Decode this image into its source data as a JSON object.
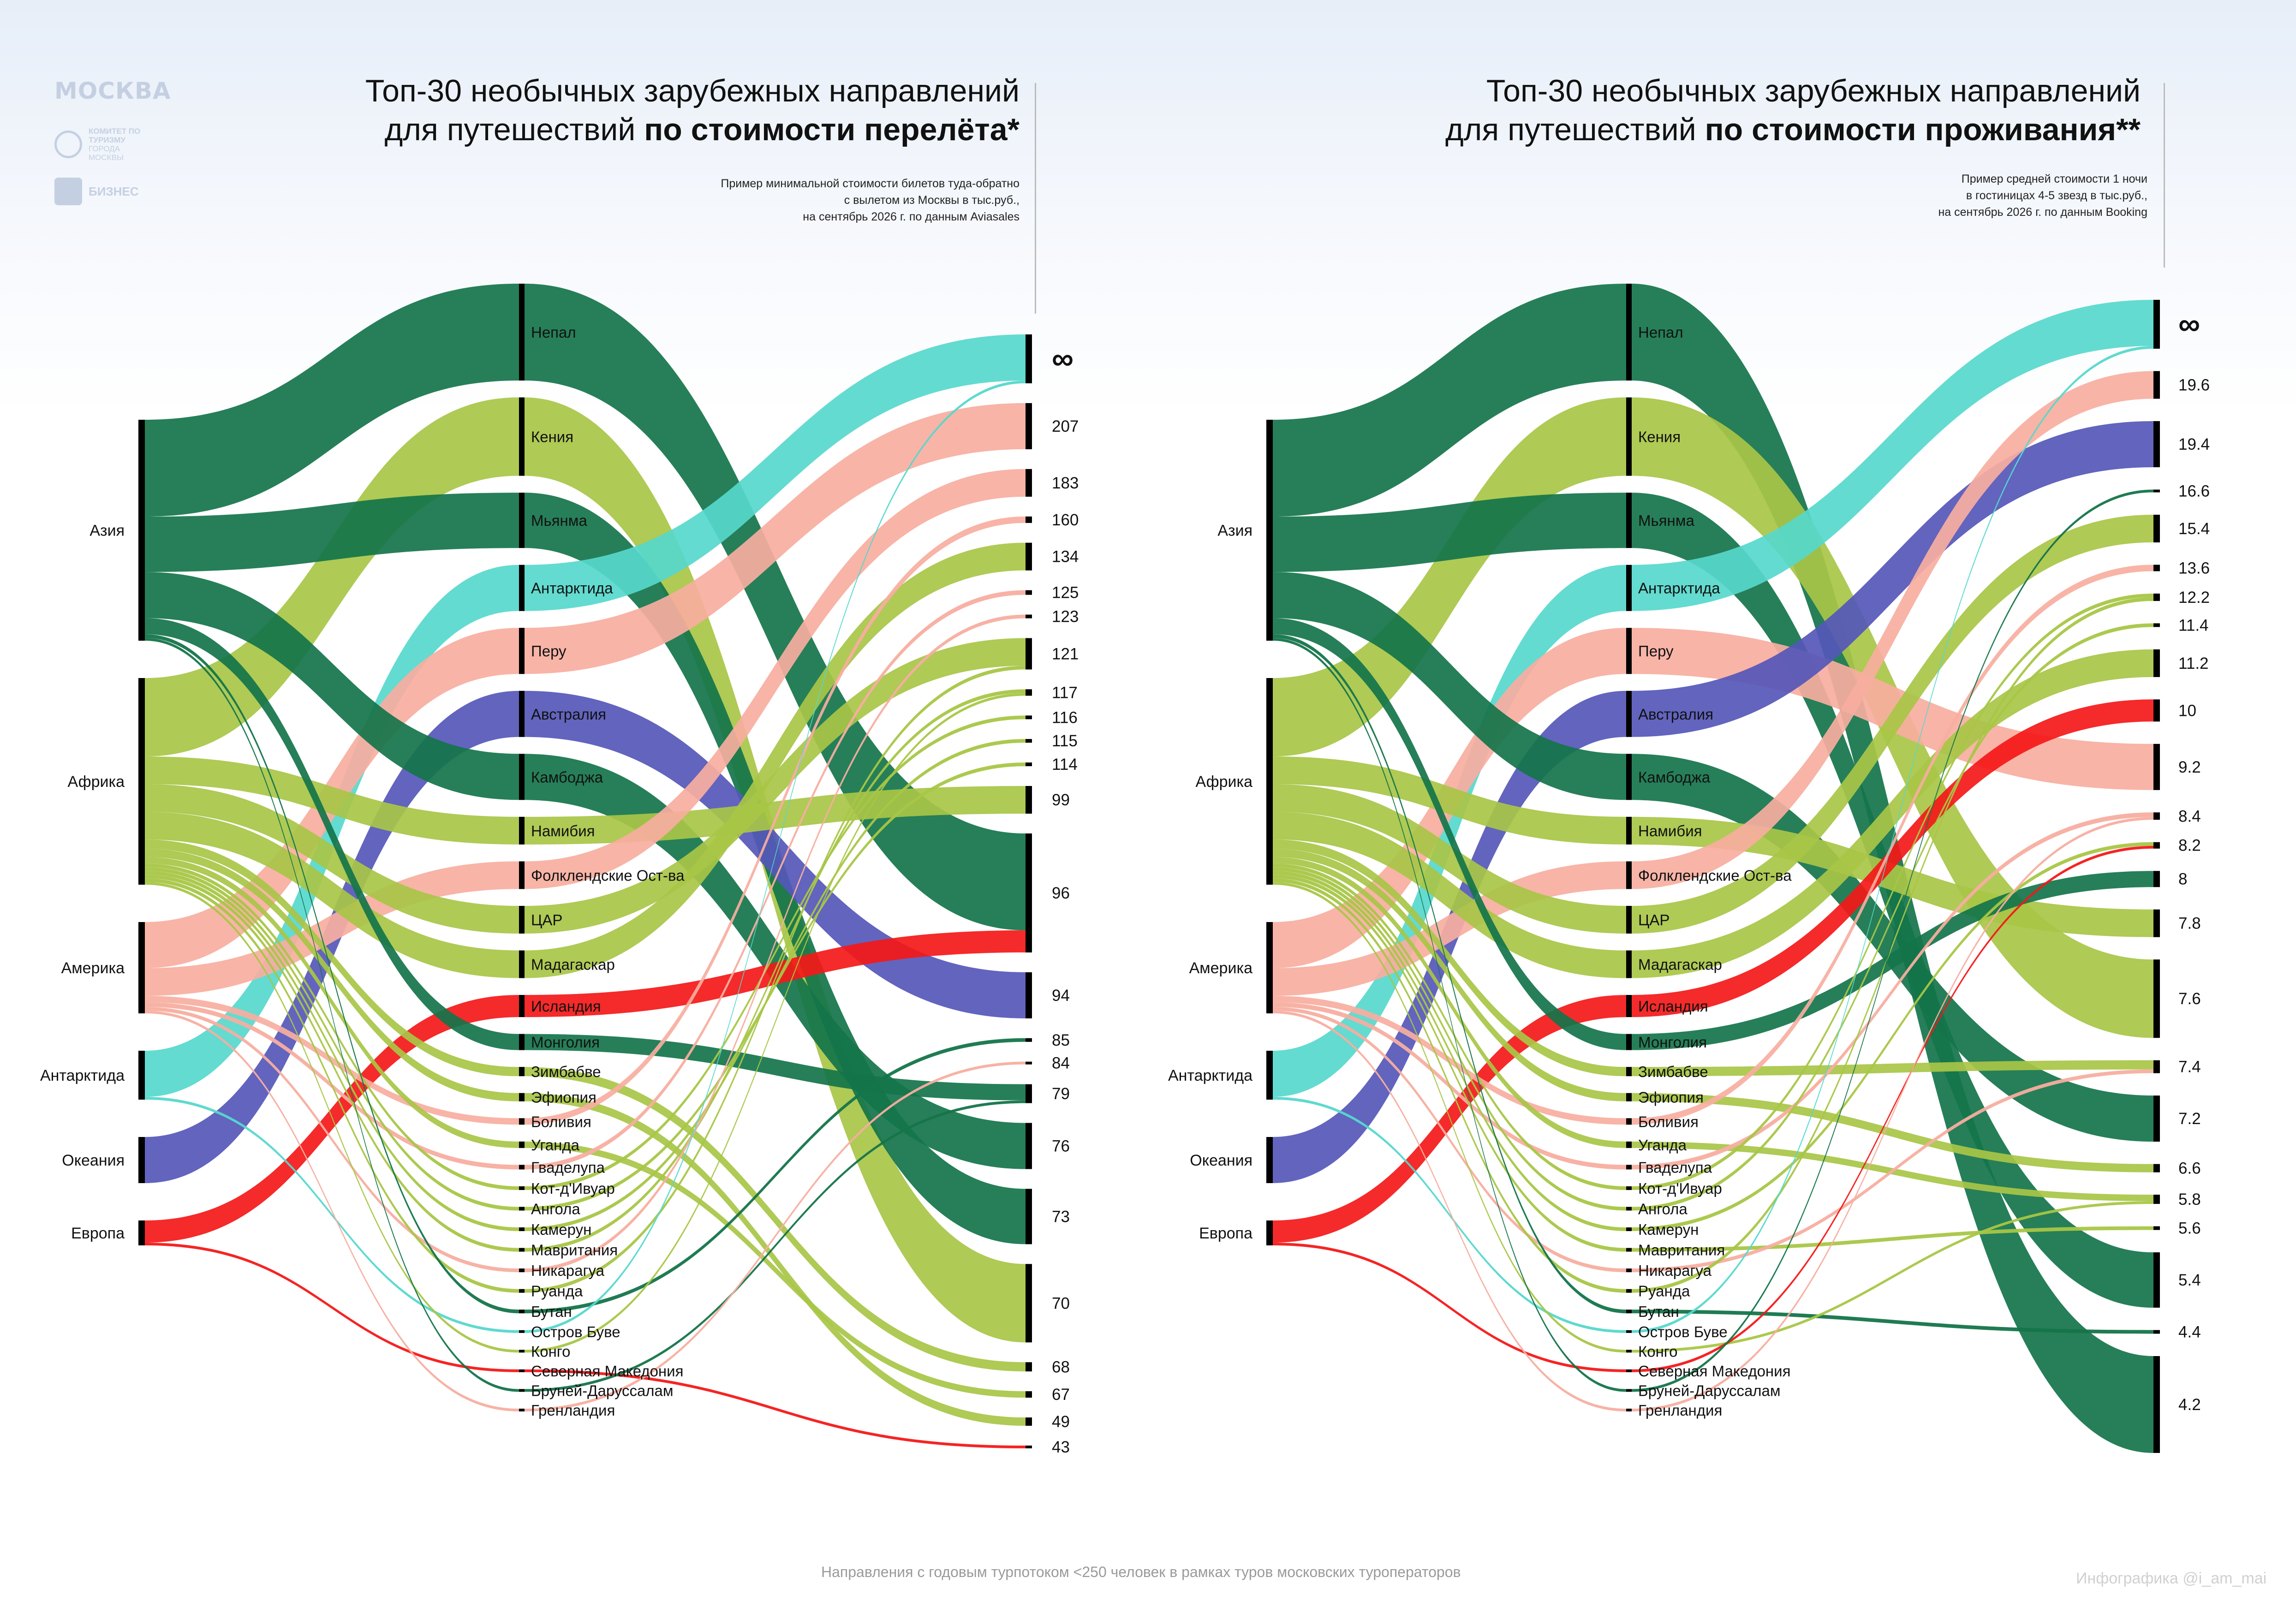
{
  "branding": {
    "city": "МОСКВА",
    "committee": "КОМИТЕТ ПО ТУРИЗМУ",
    "committee_sub": "ГОРОДА МОСКВЫ",
    "business_label": "БИЗНЕС"
  },
  "footer": "Направления с годовым турпотоком <250 человек в рамках туров московских туроператоров",
  "credit": "Инфографика @i_am_mai",
  "colors": {
    "asia": "#14744a",
    "africa": "#a8c646",
    "america": "#f7aea0",
    "antarctica": "#56d8cc",
    "oceania": "#5557b8",
    "europe": "#f41818"
  },
  "chart_data": [
    {
      "type": "sankey",
      "title_plain": "Топ-30 необычных зарубежных направлений",
      "title_line2": "для путешествий ",
      "title_bold": "по стоимости перелёта*",
      "subtitle": [
        "Пример минимальной стоимости билетов туда-обратно",
        "с вылетом из Москвы в тыс.руб.,",
        "на сентябрь 2026 г. по данным Aviasales"
      ],
      "sources": [
        "Азия",
        "Африка",
        "Америка",
        "Антарктида",
        "Океания",
        "Европа"
      ],
      "values": [
        "∞",
        "207",
        "183",
        "160",
        "134",
        "125",
        "123",
        "121",
        "117",
        "116",
        "115",
        "114",
        "99",
        "96",
        "94",
        "85",
        "84",
        "79",
        "76",
        "73",
        "70",
        "68",
        "67",
        "49",
        "43"
      ],
      "flows": [
        {
          "country": "Непал",
          "region": "Азия",
          "value": "96"
        },
        {
          "country": "Кения",
          "region": "Африка",
          "value": "70"
        },
        {
          "country": "Мьянма",
          "region": "Азия",
          "value": "73"
        },
        {
          "country": "Антарктида",
          "region": "Антарктида",
          "value": "∞"
        },
        {
          "country": "Перу",
          "region": "Америка",
          "value": "207"
        },
        {
          "country": "Австралия",
          "region": "Океания",
          "value": "94"
        },
        {
          "country": "Камбоджа",
          "region": "Азия",
          "value": "76"
        },
        {
          "country": "Намибия",
          "region": "Африка",
          "value": "99"
        },
        {
          "country": "Фолклендские Ост-ва",
          "region": "Америка",
          "value": "183"
        },
        {
          "country": "ЦАР",
          "region": "Африка",
          "value": "121"
        },
        {
          "country": "Мадагаскар",
          "region": "Африка",
          "value": "134"
        },
        {
          "country": "Исландия",
          "region": "Европа",
          "value": "96"
        },
        {
          "country": "Монголия",
          "region": "Азия",
          "value": "79"
        },
        {
          "country": "Зимбабве",
          "region": "Африка",
          "value": "68"
        },
        {
          "country": "Эфиопия",
          "region": "Африка",
          "value": "49"
        },
        {
          "country": "Боливия",
          "region": "Америка",
          "value": "160"
        },
        {
          "country": "Уганда",
          "region": "Африка",
          "value": "67"
        },
        {
          "country": "Гваделупа",
          "region": "Америка",
          "value": "125"
        },
        {
          "country": "Кот-д'Ивуар",
          "region": "Африка",
          "value": "116"
        },
        {
          "country": "Ангола",
          "region": "Африка",
          "value": "114"
        },
        {
          "country": "Камерун",
          "region": "Африка",
          "value": "115"
        },
        {
          "country": "Мавритания",
          "region": "Африка",
          "value": "117"
        },
        {
          "country": "Никарагуа",
          "region": "Америка",
          "value": "123"
        },
        {
          "country": "Руанда",
          "region": "Африка",
          "value": "121"
        },
        {
          "country": "Бутан",
          "region": "Азия",
          "value": "85"
        },
        {
          "country": "Остров Буве",
          "region": "Антарктида",
          "value": "∞"
        },
        {
          "country": "Конго",
          "region": "Африка",
          "value": "117"
        },
        {
          "country": "Северная Македония",
          "region": "Европа",
          "value": "43"
        },
        {
          "country": "Бруней-Даруссалам",
          "region": "Азия",
          "value": "79"
        },
        {
          "country": "Гренландия",
          "region": "Америка",
          "value": "84"
        }
      ]
    },
    {
      "type": "sankey",
      "title_plain": "Топ-30 необычных зарубежных направлений",
      "title_line2": "для путешествий ",
      "title_bold": "по стоимости проживания**",
      "subtitle": [
        "Пример средней стоимости 1 ночи",
        "в гостиницах 4-5 звезд в тыс.руб.,",
        "на сентябрь 2026 г. по данным Booking"
      ],
      "sources": [
        "Азия",
        "Африка",
        "Америка",
        "Антарктида",
        "Океания",
        "Европа"
      ],
      "values": [
        "∞",
        "19.6",
        "19.4",
        "16.6",
        "15.4",
        "13.6",
        "12.2",
        "11.4",
        "11.2",
        "10",
        "9.2",
        "8.4",
        "8.2",
        "8",
        "7.8",
        "7.6",
        "7.4",
        "7.2",
        "6.6",
        "5.8",
        "5.6",
        "5.4",
        "4.4",
        "4.2"
      ],
      "flows": [
        {
          "country": "Непал",
          "region": "Азия",
          "value": "4.2"
        },
        {
          "country": "Кения",
          "region": "Африка",
          "value": "7.6"
        },
        {
          "country": "Мьянма",
          "region": "Азия",
          "value": "5.4"
        },
        {
          "country": "Антарктида",
          "region": "Антарктида",
          "value": "∞"
        },
        {
          "country": "Перу",
          "region": "Америка",
          "value": "9.2"
        },
        {
          "country": "Австралия",
          "region": "Океания",
          "value": "19.4"
        },
        {
          "country": "Камбоджа",
          "region": "Азия",
          "value": "7.2"
        },
        {
          "country": "Намибия",
          "region": "Африка",
          "value": "7.8"
        },
        {
          "country": "Фолклендские Ост-ва",
          "region": "Америка",
          "value": "19.6"
        },
        {
          "country": "ЦАР",
          "region": "Африка",
          "value": "15.4"
        },
        {
          "country": "Мадагаскар",
          "region": "Африка",
          "value": "11.2"
        },
        {
          "country": "Исландия",
          "region": "Европа",
          "value": "10"
        },
        {
          "country": "Монголия",
          "region": "Азия",
          "value": "8"
        },
        {
          "country": "Зимбабве",
          "region": "Африка",
          "value": "7.4"
        },
        {
          "country": "Эфиопия",
          "region": "Африка",
          "value": "6.6"
        },
        {
          "country": "Боливия",
          "region": "Америка",
          "value": "13.6"
        },
        {
          "country": "Уганда",
          "region": "Африка",
          "value": "5.8"
        },
        {
          "country": "Гваделупа",
          "region": "Америка",
          "value": "8.4"
        },
        {
          "country": "Кот-д'Ивуар",
          "region": "Африка",
          "value": "12.2"
        },
        {
          "country": "Ангола",
          "region": "Африка",
          "value": "11.4"
        },
        {
          "country": "Камерун",
          "region": "Африка",
          "value": "8.2"
        },
        {
          "country": "Мавритания",
          "region": "Африка",
          "value": "5.6"
        },
        {
          "country": "Никарагуа",
          "region": "Америка",
          "value": "7.4"
        },
        {
          "country": "Руанда",
          "region": "Африка",
          "value": "12.2"
        },
        {
          "country": "Бутан",
          "region": "Азия",
          "value": "4.4"
        },
        {
          "country": "Остров Буве",
          "region": "Антарктида",
          "value": "∞"
        },
        {
          "country": "Конго",
          "region": "Африка",
          "value": "5.8"
        },
        {
          "country": "Северная Македония",
          "region": "Европа",
          "value": "8.2"
        },
        {
          "country": "Бруней-Даруссалам",
          "region": "Азия",
          "value": "16.6"
        },
        {
          "country": "Гренландия",
          "region": "Америка",
          "value": "8.4"
        }
      ]
    }
  ]
}
